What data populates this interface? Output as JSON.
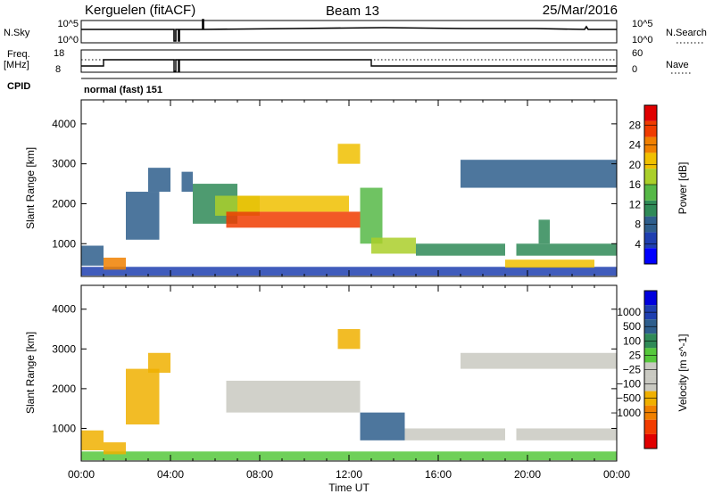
{
  "header": {
    "station": "Kerguelen (fitACF)",
    "beam": "Beam 13",
    "date": "25/Mar/2016"
  },
  "top_panels": {
    "nsky_label": "N.Sky",
    "nsky_ticks": [
      "10^5",
      "10^0"
    ],
    "nsearch_label": "N.Search",
    "nsearch_ticks": [
      "10^5",
      "10^0"
    ],
    "freq_label_line1": "Freq.",
    "freq_label_line2": "[MHz]",
    "freq_ticks": [
      "18",
      "8"
    ],
    "nave_label": "Nave",
    "nave_ticks": [
      "60",
      "0"
    ],
    "cpid_label": "CPID",
    "cpid_text": "normal (fast) 151"
  },
  "colors": {
    "power": [
      "#0000ff",
      "#1f3fb0",
      "#2e5e8c",
      "#2f8a57",
      "#56b847",
      "#aacf2a",
      "#f0c000",
      "#f08000",
      "#f03c00",
      "#e00000"
    ],
    "velocity": [
      "#e00000",
      "#f23c00",
      "#f08000",
      "#f0b000",
      "#c9c9c1",
      "#c9c9c1",
      "#56c83c",
      "#2f8a57",
      "#2e5e8c",
      "#1f3fb0",
      "#0000dd"
    ]
  },
  "chart_data": [
    {
      "type": "heatmap",
      "name": "power",
      "ylabel": "Slant Range [km]",
      "xlabel": "",
      "ylim": [
        180,
        4600
      ],
      "yticks": [
        "1000",
        "2000",
        "3000",
        "4000"
      ],
      "ytick_values": [
        1000,
        2000,
        3000,
        4000
      ],
      "x_ticks": [
        "00:00",
        "04:00",
        "08:00",
        "12:00",
        "16:00",
        "20:00",
        "00:00"
      ],
      "xlim_hours": [
        0,
        24
      ],
      "colorbar": {
        "label": "Power [dB]",
        "ticks": [
          "4",
          "8",
          "12",
          "16",
          "20",
          "24",
          "28"
        ],
        "tick_values": [
          4,
          8,
          12,
          16,
          20,
          24,
          28
        ],
        "range": [
          0,
          32
        ]
      },
      "regions": [
        {
          "t0": 0.0,
          "t1": 24.0,
          "r0": 200,
          "r1": 420,
          "value": 6
        },
        {
          "t0": 0.0,
          "t1": 1.0,
          "r0": 450,
          "r1": 950,
          "value": 8
        },
        {
          "t0": 1.0,
          "t1": 2.0,
          "r0": 350,
          "r1": 650,
          "value": 24
        },
        {
          "t0": 2.0,
          "t1": 3.5,
          "r0": 1100,
          "r1": 2300,
          "value": 9
        },
        {
          "t0": 3.0,
          "t1": 4.0,
          "r0": 2300,
          "r1": 2900,
          "value": 8
        },
        {
          "t0": 4.5,
          "t1": 5.0,
          "r0": 2300,
          "r1": 2800,
          "value": 9
        },
        {
          "t0": 5.0,
          "t1": 7.0,
          "r0": 1500,
          "r1": 2500,
          "value": 10
        },
        {
          "t0": 6.0,
          "t1": 8.0,
          "r0": 1700,
          "r1": 2200,
          "value": 18
        },
        {
          "t0": 6.5,
          "t1": 12.5,
          "r0": 1400,
          "r1": 1800,
          "value": 28
        },
        {
          "t0": 7.0,
          "t1": 12.0,
          "r0": 1800,
          "r1": 2200,
          "value": 22
        },
        {
          "t0": 11.5,
          "t1": 12.5,
          "r0": 3000,
          "r1": 3500,
          "value": 22
        },
        {
          "t0": 12.5,
          "t1": 13.5,
          "r0": 1000,
          "r1": 2400,
          "value": 14
        },
        {
          "t0": 13.0,
          "t1": 15.0,
          "r0": 750,
          "r1": 1150,
          "value": 18
        },
        {
          "t0": 15.0,
          "t1": 19.0,
          "r0": 700,
          "r1": 1000,
          "value": 12
        },
        {
          "t0": 17.0,
          "t1": 24.0,
          "r0": 2400,
          "r1": 3100,
          "value": 9
        },
        {
          "t0": 19.5,
          "t1": 24.0,
          "r0": 700,
          "r1": 1000,
          "value": 10
        },
        {
          "t0": 20.5,
          "t1": 21.0,
          "r0": 1000,
          "r1": 1600,
          "value": 12
        },
        {
          "t0": 19.0,
          "t1": 23.0,
          "r0": 400,
          "r1": 600,
          "value": 20
        }
      ]
    },
    {
      "type": "heatmap",
      "name": "velocity",
      "ylabel": "Slant Range [km]",
      "xlabel": "Time UT",
      "ylim": [
        180,
        4600
      ],
      "yticks": [
        "1000",
        "2000",
        "3000",
        "4000"
      ],
      "ytick_values": [
        1000,
        2000,
        3000,
        4000
      ],
      "x_ticks": [
        "00:00",
        "04:00",
        "08:00",
        "12:00",
        "16:00",
        "20:00",
        "00:00"
      ],
      "xlim_hours": [
        0,
        24
      ],
      "colorbar": {
        "label": "Velocity [m s^-1]",
        "ticks": [
          "1000",
          "500",
          "100",
          "25",
          "−25",
          "−100",
          "−500",
          "−1000"
        ],
        "tick_values": [
          1000,
          500,
          100,
          25,
          -25,
          -100,
          -500,
          -1000
        ]
      },
      "regions": [
        {
          "t0": 0.0,
          "t1": 24.0,
          "r0": 200,
          "r1": 420,
          "value": 20
        },
        {
          "t0": 0.0,
          "t1": 1.0,
          "r0": 450,
          "r1": 950,
          "value": -200
        },
        {
          "t0": 1.0,
          "t1": 2.0,
          "r0": 350,
          "r1": 650,
          "value": -300
        },
        {
          "t0": 2.0,
          "t1": 3.5,
          "r0": 1100,
          "r1": 2500,
          "value": -300
        },
        {
          "t0": 3.0,
          "t1": 4.0,
          "r0": 2400,
          "r1": 2900,
          "value": -300
        },
        {
          "t0": 6.5,
          "t1": 12.5,
          "r0": 1400,
          "r1": 2200,
          "value": 0
        },
        {
          "t0": 11.5,
          "t1": 12.5,
          "r0": 3000,
          "r1": 3500,
          "value": -400
        },
        {
          "t0": 12.5,
          "t1": 14.5,
          "r0": 700,
          "r1": 1400,
          "value": 150
        },
        {
          "t0": 14.5,
          "t1": 19.0,
          "r0": 700,
          "r1": 1000,
          "value": 0
        },
        {
          "t0": 17.0,
          "t1": 24.0,
          "r0": 2500,
          "r1": 2900,
          "value": 0
        },
        {
          "t0": 19.5,
          "t1": 24.0,
          "r0": 700,
          "r1": 1000,
          "value": -80
        }
      ]
    }
  ]
}
